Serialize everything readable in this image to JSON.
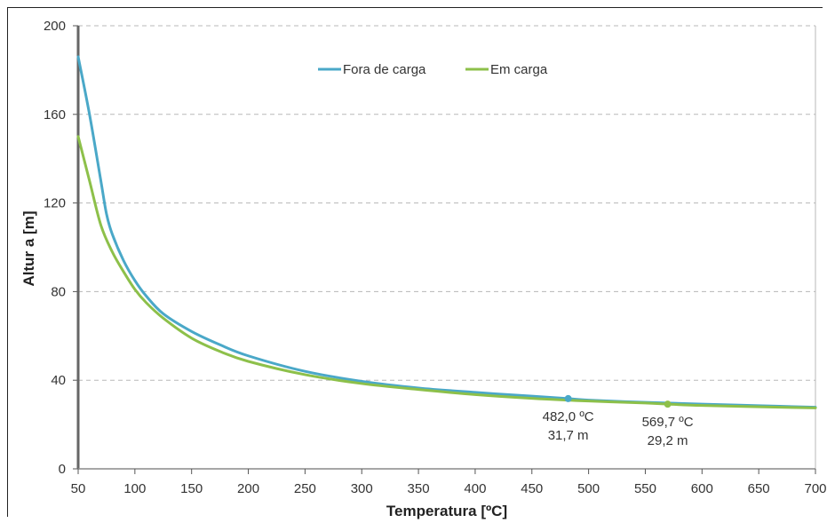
{
  "chart_data": {
    "type": "line",
    "xlabel": "Temperatura [ºC]",
    "ylabel": "Altur a [m]",
    "xlim": [
      50,
      700
    ],
    "ylim": [
      0,
      200
    ],
    "x_ticks": [
      50,
      100,
      150,
      200,
      250,
      300,
      350,
      400,
      450,
      500,
      550,
      600,
      650,
      700
    ],
    "y_ticks": [
      0,
      40,
      80,
      120,
      160,
      200
    ],
    "grid": "horizontal dashed",
    "legend_position": "top-center",
    "series": [
      {
        "name": "Fora de carga",
        "color": "#4aa8c8",
        "points": [
          [
            50,
            186
          ],
          [
            60,
            160
          ],
          [
            70,
            130
          ],
          [
            75,
            115
          ],
          [
            80,
            106
          ],
          [
            90,
            94
          ],
          [
            100,
            85
          ],
          [
            110,
            78
          ],
          [
            125,
            70
          ],
          [
            150,
            62
          ],
          [
            175,
            56
          ],
          [
            200,
            51
          ],
          [
            250,
            44
          ],
          [
            300,
            39.5
          ],
          [
            350,
            36.5
          ],
          [
            400,
            34.5
          ],
          [
            450,
            32.8
          ],
          [
            482,
            31.7
          ],
          [
            500,
            31.0
          ],
          [
            550,
            30.0
          ],
          [
            600,
            29.2
          ],
          [
            650,
            28.5
          ],
          [
            700,
            27.8
          ]
        ]
      },
      {
        "name": "Em carga",
        "color": "#8dc04a",
        "points": [
          [
            50,
            150
          ],
          [
            60,
            130
          ],
          [
            70,
            110
          ],
          [
            80,
            98
          ],
          [
            90,
            89
          ],
          [
            100,
            81
          ],
          [
            110,
            75
          ],
          [
            125,
            68
          ],
          [
            150,
            59
          ],
          [
            175,
            53
          ],
          [
            200,
            48.5
          ],
          [
            250,
            42.5
          ],
          [
            300,
            38.5
          ],
          [
            350,
            35.8
          ],
          [
            400,
            33.5
          ],
          [
            450,
            31.8
          ],
          [
            500,
            30.6
          ],
          [
            550,
            29.7
          ],
          [
            570,
            29.2
          ],
          [
            600,
            28.6
          ],
          [
            650,
            28.0
          ],
          [
            700,
            27.5
          ]
        ]
      }
    ],
    "annotations": [
      {
        "series": "Fora de carga",
        "x": 482.0,
        "y": 31.7,
        "line1": "482,0 ºC",
        "line2": "31,7 m",
        "color": "#4aa8c8"
      },
      {
        "series": "Em carga",
        "x": 569.7,
        "y": 29.2,
        "line1": "569,7 ºC",
        "line2": "29,2 m",
        "color": "#8dc04a"
      }
    ]
  }
}
